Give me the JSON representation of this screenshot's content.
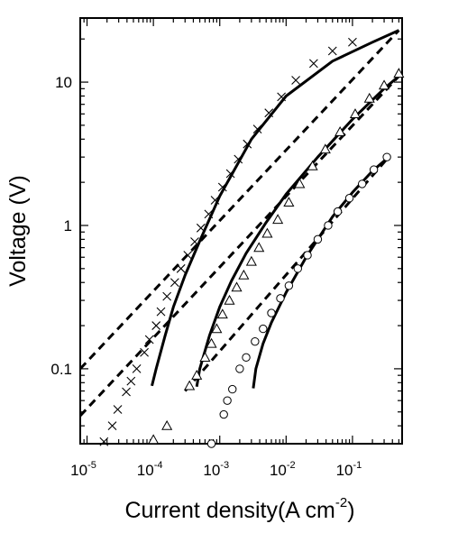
{
  "chart_data": {
    "type": "scatter",
    "xlabel": "Current density(A cm",
    "xlabel_exp": "-2",
    "xlabel_close": ")",
    "ylabel": "Voltage (V)",
    "x_scale": "log",
    "y_scale": "log",
    "xlim": [
      7.9e-06,
      0.56
    ],
    "ylim": [
      0.03,
      28
    ],
    "grid": false,
    "legend": "none",
    "x_ticks": [
      {
        "base": "10",
        "exp": "-5",
        "value": 1e-05
      },
      {
        "base": "10",
        "exp": "-4",
        "value": 0.0001
      },
      {
        "base": "10",
        "exp": "-3",
        "value": 0.001
      },
      {
        "base": "10",
        "exp": "-2",
        "value": 0.01
      },
      {
        "base": "10",
        "exp": "-1",
        "value": 0.1
      }
    ],
    "y_ticks": [
      {
        "label": "0.1",
        "value": 0.1
      },
      {
        "label": "1",
        "value": 1
      },
      {
        "label": "10",
        "value": 10
      }
    ],
    "series": [
      {
        "marker": "x",
        "points": [
          {
            "x": 1.8e-05,
            "y": 0.031
          },
          {
            "x": 2.4e-05,
            "y": 0.04
          },
          {
            "x": 2.9e-05,
            "y": 0.052
          },
          {
            "x": 3.9e-05,
            "y": 0.069
          },
          {
            "x": 4.6e-05,
            "y": 0.082
          },
          {
            "x": 5.6e-05,
            "y": 0.1
          },
          {
            "x": 7.3e-05,
            "y": 0.13
          },
          {
            "x": 8.7e-05,
            "y": 0.16
          },
          {
            "x": 0.00011,
            "y": 0.2
          },
          {
            "x": 0.00013,
            "y": 0.25
          },
          {
            "x": 0.00016,
            "y": 0.32
          },
          {
            "x": 0.00021,
            "y": 0.4
          },
          {
            "x": 0.00026,
            "y": 0.5
          },
          {
            "x": 0.00033,
            "y": 0.62
          },
          {
            "x": 0.00042,
            "y": 0.77
          },
          {
            "x": 0.00052,
            "y": 0.96
          },
          {
            "x": 0.00068,
            "y": 1.2
          },
          {
            "x": 0.00085,
            "y": 1.5
          },
          {
            "x": 0.0011,
            "y": 1.85
          },
          {
            "x": 0.00145,
            "y": 2.3
          },
          {
            "x": 0.0019,
            "y": 2.9
          },
          {
            "x": 0.0026,
            "y": 3.7
          },
          {
            "x": 0.0037,
            "y": 4.7
          },
          {
            "x": 0.0055,
            "y": 6.1
          },
          {
            "x": 0.0085,
            "y": 7.9
          },
          {
            "x": 0.014,
            "y": 10.3
          },
          {
            "x": 0.026,
            "y": 13.5
          },
          {
            "x": 0.05,
            "y": 16.5
          },
          {
            "x": 0.1,
            "y": 19
          }
        ]
      },
      {
        "marker": "triangle",
        "points": [
          {
            "x": 0.0001,
            "y": 0.032
          },
          {
            "x": 0.00016,
            "y": 0.04
          },
          {
            "x": 0.00035,
            "y": 0.076
          },
          {
            "x": 0.00045,
            "y": 0.09
          },
          {
            "x": 0.0006,
            "y": 0.12
          },
          {
            "x": 0.00075,
            "y": 0.15
          },
          {
            "x": 0.0009,
            "y": 0.19
          },
          {
            "x": 0.0011,
            "y": 0.24
          },
          {
            "x": 0.0014,
            "y": 0.3
          },
          {
            "x": 0.0018,
            "y": 0.37
          },
          {
            "x": 0.0023,
            "y": 0.45
          },
          {
            "x": 0.003,
            "y": 0.56
          },
          {
            "x": 0.0039,
            "y": 0.7
          },
          {
            "x": 0.0052,
            "y": 0.88
          },
          {
            "x": 0.0075,
            "y": 1.1
          },
          {
            "x": 0.011,
            "y": 1.45
          },
          {
            "x": 0.016,
            "y": 1.95
          },
          {
            "x": 0.025,
            "y": 2.6
          },
          {
            "x": 0.039,
            "y": 3.4
          },
          {
            "x": 0.065,
            "y": 4.5
          },
          {
            "x": 0.11,
            "y": 6
          },
          {
            "x": 0.18,
            "y": 7.7
          },
          {
            "x": 0.3,
            "y": 9.5
          },
          {
            "x": 0.5,
            "y": 11.5
          }
        ]
      },
      {
        "marker": "circle",
        "points": [
          {
            "x": 0.00075,
            "y": 0.03
          },
          {
            "x": 0.00115,
            "y": 0.048
          },
          {
            "x": 0.0013,
            "y": 0.06
          },
          {
            "x": 0.00155,
            "y": 0.072
          },
          {
            "x": 0.002,
            "y": 0.1
          },
          {
            "x": 0.0025,
            "y": 0.12
          },
          {
            "x": 0.0034,
            "y": 0.155
          },
          {
            "x": 0.0045,
            "y": 0.19
          },
          {
            "x": 0.006,
            "y": 0.245
          },
          {
            "x": 0.0082,
            "y": 0.31
          },
          {
            "x": 0.011,
            "y": 0.38
          },
          {
            "x": 0.015,
            "y": 0.5
          },
          {
            "x": 0.021,
            "y": 0.62
          },
          {
            "x": 0.03,
            "y": 0.8
          },
          {
            "x": 0.043,
            "y": 1.0
          },
          {
            "x": 0.06,
            "y": 1.25
          },
          {
            "x": 0.09,
            "y": 1.55
          },
          {
            "x": 0.14,
            "y": 1.95
          },
          {
            "x": 0.21,
            "y": 2.45
          },
          {
            "x": 0.33,
            "y": 3.0
          }
        ]
      }
    ],
    "curves": [
      {
        "style": "dashed",
        "points": [
          {
            "x": 7.9e-06,
            "y": 0.1
          },
          {
            "x": 0.5,
            "y": 23
          }
        ]
      },
      {
        "style": "dashed",
        "points": [
          {
            "x": 7.9e-06,
            "y": 0.047
          },
          {
            "x": 0.5,
            "y": 11
          }
        ]
      },
      {
        "style": "dashed",
        "points": [
          {
            "x": 0.0003,
            "y": 0.07
          },
          {
            "x": 0.35,
            "y": 3
          }
        ]
      },
      {
        "style": "solid",
        "points": [
          {
            "x": 9.5e-05,
            "y": 0.076
          },
          {
            "x": 0.00011,
            "y": 0.1
          },
          {
            "x": 0.00015,
            "y": 0.17
          },
          {
            "x": 0.0002,
            "y": 0.27
          },
          {
            "x": 0.0003,
            "y": 0.45
          },
          {
            "x": 0.0005,
            "y": 0.78
          },
          {
            "x": 0.001,
            "y": 1.6
          },
          {
            "x": 0.003,
            "y": 4
          },
          {
            "x": 0.01,
            "y": 8
          },
          {
            "x": 0.05,
            "y": 14
          },
          {
            "x": 0.2,
            "y": 19
          },
          {
            "x": 0.5,
            "y": 23
          }
        ]
      },
      {
        "style": "solid",
        "points": [
          {
            "x": 0.00045,
            "y": 0.075
          },
          {
            "x": 0.0005,
            "y": 0.1
          },
          {
            "x": 0.0007,
            "y": 0.17
          },
          {
            "x": 0.001,
            "y": 0.27
          },
          {
            "x": 0.0015,
            "y": 0.41
          },
          {
            "x": 0.0025,
            "y": 0.64
          },
          {
            "x": 0.005,
            "y": 1.05
          },
          {
            "x": 0.01,
            "y": 1.65
          },
          {
            "x": 0.03,
            "y": 3
          },
          {
            "x": 0.1,
            "y": 5.5
          },
          {
            "x": 0.3,
            "y": 9
          },
          {
            "x": 0.5,
            "y": 11
          }
        ]
      },
      {
        "style": "solid",
        "points": [
          {
            "x": 0.0032,
            "y": 0.073
          },
          {
            "x": 0.0035,
            "y": 0.1
          },
          {
            "x": 0.0045,
            "y": 0.15
          },
          {
            "x": 0.006,
            "y": 0.21
          },
          {
            "x": 0.01,
            "y": 0.34
          },
          {
            "x": 0.02,
            "y": 0.6
          },
          {
            "x": 0.05,
            "y": 1.15
          },
          {
            "x": 0.1,
            "y": 1.7
          },
          {
            "x": 0.2,
            "y": 2.4
          },
          {
            "x": 0.35,
            "y": 3
          }
        ]
      }
    ]
  }
}
